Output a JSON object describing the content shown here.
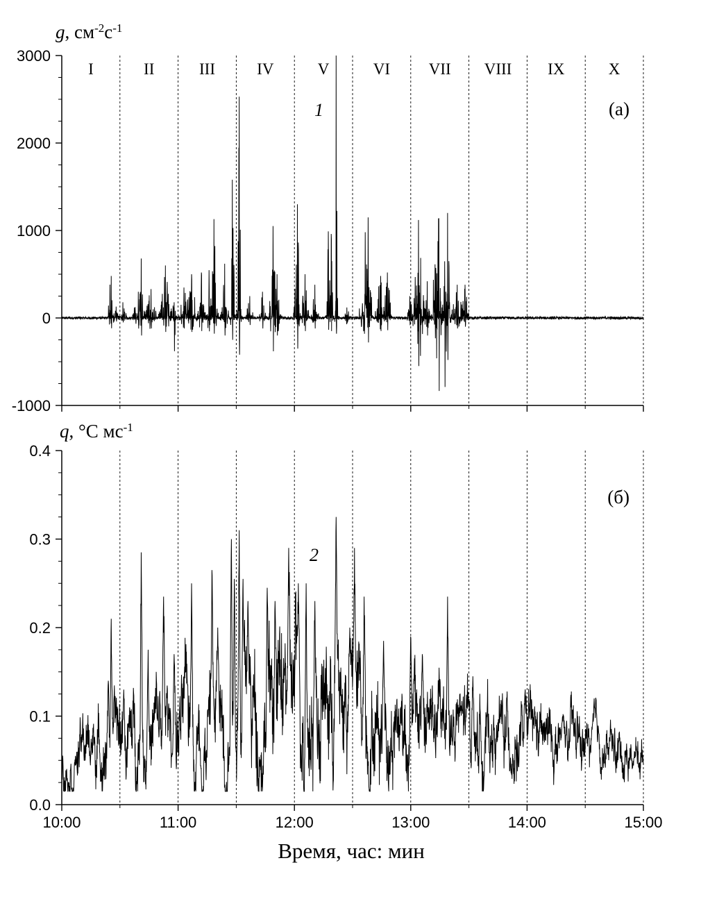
{
  "chart_data": [
    {
      "type": "line",
      "panel_label": "(а)",
      "ylabel": {
        "var": "g",
        "rest": ", см",
        "sup1": "-2",
        "mid": "с",
        "sup2": "-1"
      },
      "ylim": [
        -1000,
        3000
      ],
      "yticks": [
        -1000,
        0,
        1000,
        2000,
        3000
      ],
      "ytick_labels": [
        "-1000",
        "0",
        "1000",
        "2000",
        "3000"
      ],
      "xlim": [
        600,
        900
      ],
      "xticks": [
        600,
        660,
        720,
        780,
        840,
        900
      ],
      "separators": [
        630,
        660,
        690,
        720,
        750,
        780,
        810,
        840,
        870,
        900
      ],
      "intervals": [
        {
          "label": "I",
          "center": 615
        },
        {
          "label": "II",
          "center": 645
        },
        {
          "label": "III",
          "center": 675
        },
        {
          "label": "IV",
          "center": 705
        },
        {
          "label": "V",
          "center": 735
        },
        {
          "label": "VI",
          "center": 765
        },
        {
          "label": "VII",
          "center": 795
        },
        {
          "label": "VIII",
          "center": 825
        },
        {
          "label": "IX",
          "center": 855
        },
        {
          "label": "X",
          "center": 885
        }
      ],
      "curve_label": "1",
      "series": [
        {
          "baseline_noise": 15,
          "bursts": [
            {
              "x": 625.5,
              "width": 1.0,
              "up": 480,
              "down": 120
            },
            {
              "x": 628.0,
              "width": 0.8,
              "up": 130,
              "down": 40
            },
            {
              "x": 631.5,
              "width": 1.0,
              "up": 180,
              "down": 50
            },
            {
              "x": 639.5,
              "width": 1.5,
              "up": 300,
              "down": 120
            },
            {
              "x": 641.0,
              "width": 0.8,
              "up": 680,
              "down": 200
            },
            {
              "x": 646.0,
              "width": 1.5,
              "up": 330,
              "down": 120
            },
            {
              "x": 653.5,
              "width": 1.5,
              "up": 600,
              "down": 160
            },
            {
              "x": 658.0,
              "width": 1.0,
              "up": 180,
              "down": 380
            },
            {
              "x": 663.0,
              "width": 1.5,
              "up": 350,
              "down": 120
            },
            {
              "x": 667.0,
              "width": 1.5,
              "up": 500,
              "down": 160
            },
            {
              "x": 672.0,
              "width": 1.0,
              "up": 520,
              "down": 150
            },
            {
              "x": 676.0,
              "width": 1.0,
              "up": 550,
              "down": 150
            },
            {
              "x": 678.5,
              "width": 1.0,
              "up": 1130,
              "down": 180
            },
            {
              "x": 684.0,
              "width": 1.0,
              "up": 620,
              "down": 200
            },
            {
              "x": 688.0,
              "width": 0.6,
              "up": 1580,
              "down": 250
            },
            {
              "x": 691.5,
              "width": 0.5,
              "up": 2530,
              "down": 420
            },
            {
              "x": 697.0,
              "width": 1.0,
              "up": 250,
              "down": 80
            },
            {
              "x": 703.5,
              "width": 0.8,
              "up": 300,
              "down": 120
            },
            {
              "x": 709.0,
              "width": 1.0,
              "up": 1050,
              "down": 450
            },
            {
              "x": 711.0,
              "width": 1.0,
              "up": 500,
              "down": 200
            },
            {
              "x": 721.5,
              "width": 0.8,
              "up": 1300,
              "down": 350
            },
            {
              "x": 725.5,
              "width": 1.0,
              "up": 500,
              "down": 150
            },
            {
              "x": 730.5,
              "width": 1.0,
              "up": 380,
              "down": 120
            },
            {
              "x": 737.5,
              "width": 0.5,
              "up": 990,
              "down": 150
            },
            {
              "x": 739.0,
              "width": 0.5,
              "up": 960,
              "down": 150
            },
            {
              "x": 741.5,
              "width": 0.4,
              "up": 3000,
              "down": 180
            },
            {
              "x": 747.0,
              "width": 1.0,
              "up": 120,
              "down": 60
            },
            {
              "x": 756.5,
              "width": 1.5,
              "up": 950,
              "down": 300
            },
            {
              "x": 758.0,
              "width": 1.0,
              "up": 1150,
              "down": 280
            },
            {
              "x": 764.5,
              "width": 1.5,
              "up": 480,
              "down": 150
            },
            {
              "x": 768.0,
              "width": 1.0,
              "up": 520,
              "down": 140
            },
            {
              "x": 779.5,
              "width": 1.0,
              "up": 250,
              "down": 80
            },
            {
              "x": 784.0,
              "width": 1.5,
              "up": 1120,
              "down": 550
            },
            {
              "x": 788.5,
              "width": 1.0,
              "up": 420,
              "down": 200
            },
            {
              "x": 792.5,
              "width": 1.0,
              "up": 650,
              "down": 230
            },
            {
              "x": 794.5,
              "width": 1.0,
              "up": 1140,
              "down": 820
            },
            {
              "x": 797.5,
              "width": 1.0,
              "up": 650,
              "down": 830
            },
            {
              "x": 799.0,
              "width": 0.8,
              "up": 1200,
              "down": 480
            },
            {
              "x": 804.0,
              "width": 1.5,
              "up": 380,
              "down": 120
            },
            {
              "x": 808.0,
              "width": 1.0,
              "up": 380,
              "down": 100
            }
          ]
        }
      ]
    },
    {
      "type": "line",
      "panel_label": "(б)",
      "ylabel": {
        "var": "q",
        "rest": ", °С мс",
        "sup1": "-1",
        "mid": "",
        "sup2": ""
      },
      "ylim": [
        0.0,
        0.4
      ],
      "yticks": [
        0.0,
        0.1,
        0.2,
        0.3,
        0.4
      ],
      "ytick_labels": [
        "0.0",
        "0.1",
        "0.2",
        "0.3",
        "0.4"
      ],
      "xlim": [
        600,
        900
      ],
      "xticks": [
        600,
        660,
        720,
        780,
        840,
        900
      ],
      "xtick_labels": [
        "10:00",
        "11:00",
        "12:00",
        "13:00",
        "14:00",
        "15:00"
      ],
      "xlabel": "Время, час: мин",
      "separators": [
        630,
        660,
        690,
        720,
        750,
        780,
        810,
        840,
        870,
        900
      ],
      "curve_label": "2",
      "series": [
        {
          "envelope": {
            "x": [
              600,
              612,
              624,
              636,
              648,
              660,
              672,
              684,
              696,
              708,
              720,
              732,
              744,
              756,
              768,
              780,
              792,
              804,
              816,
              828,
              840,
              852,
              864,
              876,
              888,
              900
            ],
            "mean": [
              0.055,
              0.065,
              0.07,
              0.075,
              0.08,
              0.085,
              0.09,
              0.1,
              0.105,
              0.115,
              0.12,
              0.12,
              0.115,
              0.11,
              0.1,
              0.095,
              0.09,
              0.085,
              0.08,
              0.08,
              0.075,
              0.07,
              0.068,
              0.065,
              0.06,
              0.055
            ],
            "amp": [
              0.025,
              0.03,
              0.035,
              0.04,
              0.045,
              0.05,
              0.055,
              0.06,
              0.065,
              0.07,
              0.07,
              0.07,
              0.065,
              0.06,
              0.055,
              0.05,
              0.045,
              0.04,
              0.04,
              0.035,
              0.035,
              0.03,
              0.03,
              0.025,
              0.025,
              0.02
            ]
          },
          "peaks": [
            {
              "x": 624.0,
              "y": 0.14
            },
            {
              "x": 625.5,
              "y": 0.21
            },
            {
              "x": 632.0,
              "y": 0.13
            },
            {
              "x": 641.0,
              "y": 0.285
            },
            {
              "x": 644.5,
              "y": 0.175
            },
            {
              "x": 652.5,
              "y": 0.235
            },
            {
              "x": 658.0,
              "y": 0.17
            },
            {
              "x": 667.0,
              "y": 0.25
            },
            {
              "x": 677.5,
              "y": 0.265
            },
            {
              "x": 680.5,
              "y": 0.2
            },
            {
              "x": 687.5,
              "y": 0.3
            },
            {
              "x": 689.0,
              "y": 0.255
            },
            {
              "x": 691.5,
              "y": 0.31
            },
            {
              "x": 693.5,
              "y": 0.255
            },
            {
              "x": 696.0,
              "y": 0.23
            },
            {
              "x": 706.0,
              "y": 0.245
            },
            {
              "x": 710.0,
              "y": 0.23
            },
            {
              "x": 717.0,
              "y": 0.29
            },
            {
              "x": 722.0,
              "y": 0.25
            },
            {
              "x": 726.0,
              "y": 0.25
            },
            {
              "x": 730.5,
              "y": 0.23
            },
            {
              "x": 741.5,
              "y": 0.325
            },
            {
              "x": 748.5,
              "y": 0.2
            },
            {
              "x": 751.0,
              "y": 0.29
            },
            {
              "x": 756.0,
              "y": 0.235
            },
            {
              "x": 766.0,
              "y": 0.185
            },
            {
              "x": 780.0,
              "y": 0.19
            },
            {
              "x": 786.0,
              "y": 0.17
            },
            {
              "x": 799.0,
              "y": 0.235
            },
            {
              "x": 812.0,
              "y": 0.145
            }
          ]
        }
      ]
    }
  ],
  "annotations": {
    "panel_a": "(а)",
    "panel_b": "(б)",
    "curve_1": "1",
    "curve_2": "2"
  }
}
